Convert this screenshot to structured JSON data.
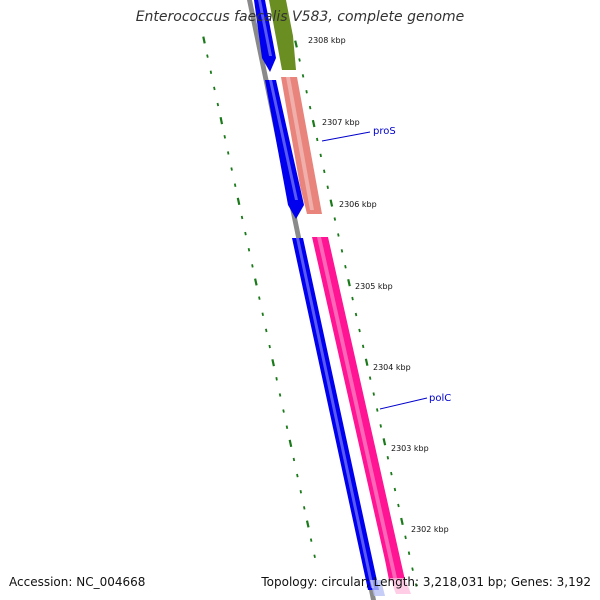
{
  "header": {
    "title": "Enterococcus faecalis V583, complete genome"
  },
  "footer": {
    "accession": "Accession: NC_004668",
    "summary": "Topology: circular; Length: 3,218,031 bp; Genes: 3,192"
  },
  "colors": {
    "backbone": "#8a8a8a",
    "forward_gene": "#0000ee",
    "reverse_gene_salmon": "#e8847c",
    "reverse_gene_pink": "#ff1493",
    "reverse_gene_olive": "#6b8e23",
    "tick": "#1a7a1a",
    "label_line": "#0000cc"
  },
  "scale_ticks": [
    {
      "label": "2308 kbp"
    },
    {
      "label": "2307 kbp"
    },
    {
      "label": "2306 kbp"
    },
    {
      "label": "2305 kbp"
    },
    {
      "label": "2304 kbp"
    },
    {
      "label": "2303 kbp"
    },
    {
      "label": "2302 kbp"
    }
  ],
  "gene_labels": [
    {
      "text": "proS"
    },
    {
      "text": "polC"
    }
  ]
}
